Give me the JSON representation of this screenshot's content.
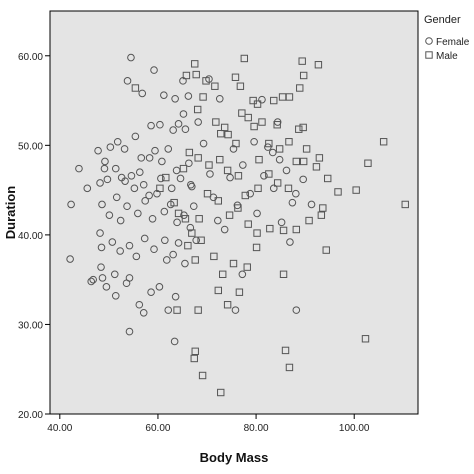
{
  "chart_data": {
    "type": "scatter",
    "title": "",
    "xlabel": "Body Mass",
    "ylabel": "Duration",
    "xlim": [
      38,
      113
    ],
    "ylim": [
      20,
      65
    ],
    "x_ticks": [
      40,
      60,
      80,
      100
    ],
    "x_tick_labels": [
      "40.00",
      "60.00",
      "80.00",
      "100.00"
    ],
    "y_ticks": [
      20,
      30,
      40,
      50,
      60
    ],
    "y_tick_labels": [
      "20.00",
      "30.00",
      "40.00",
      "50.00",
      "60.00"
    ],
    "grid": false,
    "legend_title": "Gender",
    "legend_placement": "top-right outside",
    "colors": {
      "plot_background": "#e4e4e4",
      "marker_stroke": "#555555",
      "axis": "#000000"
    },
    "series": [
      {
        "name": "Female",
        "marker": "circle",
        "points": [
          [
            54.5,
            59.8
          ],
          [
            53.8,
            57.2
          ],
          [
            59.2,
            58.4
          ],
          [
            56.8,
            55.8
          ],
          [
            63.5,
            55.2
          ],
          [
            65.2,
            53.5
          ],
          [
            58.6,
            52.2
          ],
          [
            63.1,
            51.7
          ],
          [
            65.6,
            51.8
          ],
          [
            60.4,
            52.3
          ],
          [
            43.9,
            47.4
          ],
          [
            45.6,
            45.2
          ],
          [
            42.3,
            43.4
          ],
          [
            48.2,
            45.8
          ],
          [
            47.8,
            49.4
          ],
          [
            49.2,
            48.2
          ],
          [
            50.3,
            49.8
          ],
          [
            49.1,
            47.4
          ],
          [
            49.7,
            46.2
          ],
          [
            51.4,
            47.4
          ],
          [
            52.6,
            46.4
          ],
          [
            53.3,
            46.0
          ],
          [
            54.6,
            46.6
          ],
          [
            55.2,
            45.2
          ],
          [
            56.3,
            47.0
          ],
          [
            57.1,
            45.6
          ],
          [
            58.3,
            48.6
          ],
          [
            59.4,
            49.4
          ],
          [
            60.8,
            48.2
          ],
          [
            62.1,
            49.6
          ],
          [
            63.8,
            47.2
          ],
          [
            64.6,
            46.3
          ],
          [
            66.3,
            48.0
          ],
          [
            66.9,
            45.4
          ],
          [
            48.6,
            43.4
          ],
          [
            50.1,
            42.2
          ],
          [
            51.6,
            44.2
          ],
          [
            52.4,
            41.6
          ],
          [
            53.7,
            43.2
          ],
          [
            55.9,
            42.4
          ],
          [
            57.4,
            43.8
          ],
          [
            58.9,
            41.8
          ],
          [
            59.8,
            44.6
          ],
          [
            61.3,
            42.6
          ],
          [
            62.6,
            43.4
          ],
          [
            63.9,
            41.4
          ],
          [
            65.3,
            42.2
          ],
          [
            66.6,
            40.8
          ],
          [
            48.2,
            40.2
          ],
          [
            48.5,
            38.6
          ],
          [
            50.7,
            39.2
          ],
          [
            52.3,
            38.2
          ],
          [
            54.2,
            38.8
          ],
          [
            55.6,
            37.6
          ],
          [
            57.3,
            39.6
          ],
          [
            59.2,
            38.4
          ],
          [
            61.4,
            39.4
          ],
          [
            63.1,
            37.8
          ],
          [
            64.2,
            39.1
          ],
          [
            65.5,
            36.8
          ],
          [
            42.1,
            37.3
          ],
          [
            46.8,
            35.0
          ],
          [
            48.4,
            36.4
          ],
          [
            48.7,
            35.2
          ],
          [
            49.5,
            34.2
          ],
          [
            51.2,
            35.6
          ],
          [
            53.6,
            34.6
          ],
          [
            54.2,
            35.2
          ],
          [
            56.2,
            32.2
          ],
          [
            57.1,
            31.3
          ],
          [
            58.6,
            33.6
          ],
          [
            60.3,
            34.2
          ],
          [
            62.1,
            31.6
          ],
          [
            63.6,
            33.1
          ],
          [
            54.2,
            29.2
          ],
          [
            63.4,
            28.1
          ],
          [
            46.4,
            34.8
          ],
          [
            51.4,
            33.2
          ],
          [
            61.8,
            37.2
          ],
          [
            67.3,
            43.2
          ],
          [
            67.8,
            39.4
          ],
          [
            66.7,
            45.6
          ],
          [
            64.2,
            52.4
          ],
          [
            60.6,
            46.3
          ],
          [
            55.4,
            51.0
          ],
          [
            53.2,
            49.6
          ],
          [
            51.8,
            50.4
          ],
          [
            56.6,
            48.6
          ],
          [
            58.2,
            44.4
          ],
          [
            62.8,
            45.2
          ],
          [
            61.2,
            55.6
          ],
          [
            68.2,
            52.6
          ],
          [
            69.3,
            50.2
          ],
          [
            70.6,
            46.8
          ],
          [
            71.3,
            44.2
          ],
          [
            72.2,
            41.6
          ],
          [
            73.6,
            40.6
          ],
          [
            74.7,
            46.4
          ],
          [
            75.4,
            49.6
          ],
          [
            76.2,
            43.3
          ],
          [
            77.3,
            47.8
          ],
          [
            78.8,
            44.6
          ],
          [
            80.2,
            42.4
          ],
          [
            81.6,
            46.6
          ],
          [
            82.4,
            49.8
          ],
          [
            83.6,
            45.2
          ],
          [
            84.8,
            48.4
          ],
          [
            86.2,
            47.2
          ],
          [
            87.4,
            43.6
          ],
          [
            88.1,
            44.6
          ],
          [
            89.6,
            46.2
          ],
          [
            91.3,
            43.4
          ],
          [
            86.9,
            39.2
          ],
          [
            85.2,
            41.4
          ],
          [
            77.2,
            35.6
          ],
          [
            75.8,
            31.6
          ],
          [
            88.2,
            31.6
          ],
          [
            83.4,
            49.2
          ],
          [
            79.6,
            50.4
          ],
          [
            84.4,
            52.6
          ],
          [
            81.2,
            55.1
          ],
          [
            72.6,
            55.2
          ],
          [
            66.2,
            55.5
          ],
          [
            70.4,
            57.4
          ],
          [
            65.1,
            57.2
          ]
        ]
      },
      {
        "name": "Male",
        "marker": "square",
        "points": [
          [
            55.4,
            56.4
          ],
          [
            67.5,
            59.1
          ],
          [
            67.8,
            57.9
          ],
          [
            69.8,
            57.2
          ],
          [
            71.6,
            56.6
          ],
          [
            65.8,
            57.8
          ],
          [
            77.6,
            59.7
          ],
          [
            89.4,
            59.4
          ],
          [
            92.7,
            59.0
          ],
          [
            89.7,
            57.8
          ],
          [
            88.9,
            56.4
          ],
          [
            85.4,
            55.4
          ],
          [
            79.4,
            55.0
          ],
          [
            80.3,
            54.6
          ],
          [
            83.6,
            55.0
          ],
          [
            86.8,
            55.4
          ],
          [
            76.8,
            56.6
          ],
          [
            68.1,
            54.0
          ],
          [
            69.2,
            55.4
          ],
          [
            71.8,
            52.6
          ],
          [
            72.8,
            51.3
          ],
          [
            74.3,
            51.2
          ],
          [
            75.9,
            50.2
          ],
          [
            78.4,
            53.1
          ],
          [
            79.6,
            52.1
          ],
          [
            81.2,
            52.6
          ],
          [
            82.6,
            50.2
          ],
          [
            84.8,
            49.6
          ],
          [
            86.7,
            50.4
          ],
          [
            88.7,
            51.8
          ],
          [
            89.6,
            52.0
          ],
          [
            90.3,
            49.6
          ],
          [
            88.2,
            48.2
          ],
          [
            89.7,
            48.2
          ],
          [
            92.3,
            47.6
          ],
          [
            94.6,
            46.3
          ],
          [
            96.7,
            44.8
          ],
          [
            100.4,
            45.0
          ],
          [
            102.8,
            48.0
          ],
          [
            106.0,
            50.4
          ],
          [
            110.4,
            43.4
          ],
          [
            93.6,
            43.0
          ],
          [
            93.3,
            42.2
          ],
          [
            92.9,
            48.6
          ],
          [
            94.3,
            38.3
          ],
          [
            90.8,
            41.6
          ],
          [
            88.2,
            40.6
          ],
          [
            85.6,
            40.5
          ],
          [
            82.8,
            40.7
          ],
          [
            80.2,
            40.2
          ],
          [
            78.4,
            41.2
          ],
          [
            76.3,
            43.0
          ],
          [
            74.6,
            42.2
          ],
          [
            72.3,
            43.8
          ],
          [
            70.1,
            44.6
          ],
          [
            68.4,
            41.8
          ],
          [
            66.9,
            40.2
          ],
          [
            65.6,
            41.8
          ],
          [
            64.2,
            42.4
          ],
          [
            63.3,
            43.6
          ],
          [
            61.6,
            46.4
          ],
          [
            60.4,
            45.2
          ],
          [
            65.2,
            47.4
          ],
          [
            66.4,
            49.2
          ],
          [
            68.2,
            48.6
          ],
          [
            70.4,
            47.8
          ],
          [
            72.6,
            48.4
          ],
          [
            74.2,
            47.2
          ],
          [
            76.4,
            46.6
          ],
          [
            77.8,
            44.4
          ],
          [
            80.4,
            45.2
          ],
          [
            82.6,
            46.8
          ],
          [
            84.4,
            45.8
          ],
          [
            86.6,
            45.2
          ],
          [
            66.1,
            38.8
          ],
          [
            67.6,
            37.2
          ],
          [
            68.8,
            39.4
          ],
          [
            71.4,
            37.6
          ],
          [
            73.2,
            35.6
          ],
          [
            75.4,
            36.8
          ],
          [
            76.6,
            33.6
          ],
          [
            78.2,
            36.4
          ],
          [
            80.1,
            38.6
          ],
          [
            85.6,
            35.6
          ],
          [
            74.2,
            32.2
          ],
          [
            72.3,
            33.8
          ],
          [
            68.2,
            31.6
          ],
          [
            63.9,
            31.6
          ],
          [
            67.6,
            27.0
          ],
          [
            67.4,
            26.2
          ],
          [
            69.1,
            24.3
          ],
          [
            72.8,
            22.4
          ],
          [
            86.0,
            27.1
          ],
          [
            86.8,
            25.2
          ],
          [
            102.3,
            28.4
          ],
          [
            77.1,
            53.6
          ],
          [
            80.6,
            48.4
          ],
          [
            73.6,
            52.0
          ],
          [
            84.3,
            52.3
          ],
          [
            75.8,
            57.6
          ]
        ]
      }
    ]
  }
}
